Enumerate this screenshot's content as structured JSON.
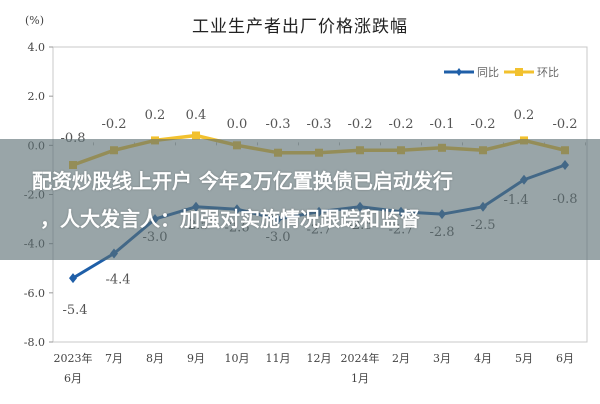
{
  "chart_data": {
    "type": "line",
    "title": "工业生产者出厂价格涨跌幅",
    "ylabel": "(%)",
    "xlabel": "",
    "ylim": [
      -8.0,
      4.0
    ],
    "yticks": [
      "4.0",
      "2.0",
      "0.0",
      "-2.0",
      "-4.0",
      "-6.0",
      "-8.0"
    ],
    "categories": [
      "2023年\n6月",
      "7月",
      "8月",
      "9月",
      "10月",
      "11月",
      "12月",
      "2024年\n1月",
      "2月",
      "3月",
      "4月",
      "5月",
      "6月"
    ],
    "category_lines": [
      [
        "2023年",
        "6月"
      ],
      [
        "7月"
      ],
      [
        "8月"
      ],
      [
        "9月"
      ],
      [
        "10月"
      ],
      [
        "11月"
      ],
      [
        "12月"
      ],
      [
        "2024年",
        "1月"
      ],
      [
        "2月"
      ],
      [
        "3月"
      ],
      [
        "4月"
      ],
      [
        "5月"
      ],
      [
        "6月"
      ]
    ],
    "series": [
      {
        "name": "同比",
        "color": "#1f5fa8",
        "marker": "diamond",
        "values": [
          -5.4,
          -4.4,
          -3.0,
          -2.5,
          -2.6,
          -3.0,
          -2.7,
          -2.5,
          -2.7,
          -2.8,
          -2.5,
          -1.4,
          -0.8
        ],
        "labels": [
          "-5.4",
          "-4.4",
          "-3.0",
          "-2.5",
          "-2.6",
          "-3.0",
          "-2.7",
          "-2.5",
          "-2.7",
          "-2.8",
          "-2.5",
          "-1.4",
          "-0.8"
        ]
      },
      {
        "name": "环比",
        "color": "#f2c12e",
        "marker": "square",
        "values": [
          -0.8,
          -0.2,
          0.2,
          0.4,
          0.0,
          -0.3,
          -0.3,
          -0.2,
          -0.2,
          -0.1,
          -0.2,
          0.2,
          -0.2
        ],
        "labels": [
          "-0.8",
          "-0.2",
          "0.2",
          "0.4",
          "0.0",
          "-0.3",
          "-0.3",
          "-0.2",
          "-0.2",
          "-0.1",
          "-0.2",
          "0.2",
          "-0.2"
        ]
      }
    ],
    "legend": {
      "position": "top-right",
      "entries": [
        "同比",
        "环比"
      ]
    },
    "grid": false
  },
  "overlay": {
    "headline_line1": "配资炒股线上开户 今年2万亿置换债已启动发行",
    "headline_line2": "，人大发言人：加强对实施情况跟踪和监督"
  }
}
